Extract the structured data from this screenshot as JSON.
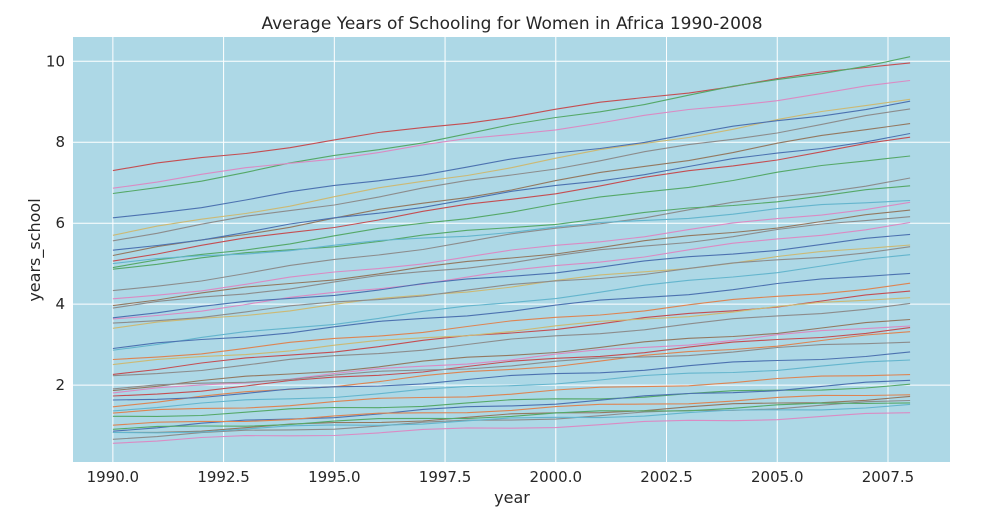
{
  "chart_data": {
    "type": "line",
    "title": "Average Years of Schooling for Women in Africa 1990-2008",
    "xlabel": "year",
    "ylabel": "years_school",
    "xlim": [
      1989.1,
      2008.9
    ],
    "ylim": [
      0.1,
      10.6
    ],
    "x_ticks": [
      "1990.0",
      "1992.5",
      "1995.0",
      "1997.5",
      "2000.0",
      "2002.5",
      "2005.0",
      "2007.5"
    ],
    "y_ticks": [
      "2",
      "4",
      "6",
      "8",
      "10"
    ],
    "x_tick_values": [
      1990,
      1992.5,
      1995,
      1997.5,
      2000,
      2002.5,
      2005,
      2007.5
    ],
    "y_tick_values": [
      2,
      4,
      6,
      8,
      10
    ],
    "grid": true,
    "background": "#add8e6",
    "x": [
      1990,
      1991,
      1992,
      1993,
      1994,
      1995,
      1996,
      1997,
      1998,
      1999,
      2000,
      2001,
      2002,
      2003,
      2004,
      2005,
      2006,
      2007,
      2008
    ],
    "series": [
      {
        "color": "#c44e52",
        "start": 7.3,
        "end": 10.0
      },
      {
        "color": "#55a868",
        "start": 6.7,
        "end": 10.1
      },
      {
        "color": "#da8bc3",
        "start": 6.9,
        "end": 9.5
      },
      {
        "color": "#ccb974",
        "start": 5.7,
        "end": 9.1
      },
      {
        "color": "#4c72b0",
        "start": 6.1,
        "end": 9.0
      },
      {
        "color": "#8c8c8c",
        "start": 5.6,
        "end": 8.8
      },
      {
        "color": "#937860",
        "start": 5.2,
        "end": 8.5
      },
      {
        "color": "#4c72b0",
        "start": 5.3,
        "end": 8.2
      },
      {
        "color": "#c44e52",
        "start": 5.1,
        "end": 8.1
      },
      {
        "color": "#55a868",
        "start": 4.9,
        "end": 7.7
      },
      {
        "color": "#8c8c8c",
        "start": 4.3,
        "end": 7.1
      },
      {
        "color": "#55a868",
        "start": 4.9,
        "end": 6.9
      },
      {
        "color": "#64b5cd",
        "start": 5.0,
        "end": 6.6
      },
      {
        "color": "#da8bc3",
        "start": 4.1,
        "end": 6.5
      },
      {
        "color": "#937860",
        "start": 4.0,
        "end": 6.3
      },
      {
        "color": "#8c8c8c",
        "start": 3.9,
        "end": 6.2
      },
      {
        "color": "#da8bc3",
        "start": 3.6,
        "end": 6.0
      },
      {
        "color": "#4c72b0",
        "start": 3.7,
        "end": 5.7
      },
      {
        "color": "#ccb974",
        "start": 3.4,
        "end": 5.5
      },
      {
        "color": "#8c8c8c",
        "start": 3.5,
        "end": 5.4
      },
      {
        "color": "#64b5cd",
        "start": 2.9,
        "end": 5.2
      },
      {
        "color": "#4c72b0",
        "start": 2.9,
        "end": 4.8
      },
      {
        "color": "#dd8452",
        "start": 2.6,
        "end": 4.5
      },
      {
        "color": "#c44e52",
        "start": 2.3,
        "end": 4.3
      },
      {
        "color": "#ccb974",
        "start": 2.5,
        "end": 4.2
      },
      {
        "color": "#8c8c8c",
        "start": 2.2,
        "end": 4.0
      },
      {
        "color": "#937860",
        "start": 1.9,
        "end": 3.6
      },
      {
        "color": "#da8bc3",
        "start": 1.8,
        "end": 3.5
      },
      {
        "color": "#c44e52",
        "start": 1.7,
        "end": 3.4
      },
      {
        "color": "#dd8452",
        "start": 1.5,
        "end": 3.3
      },
      {
        "color": "#8c8c8c",
        "start": 1.9,
        "end": 3.1
      },
      {
        "color": "#4c72b0",
        "start": 1.6,
        "end": 2.8
      },
      {
        "color": "#64b5cd",
        "start": 1.4,
        "end": 2.6
      },
      {
        "color": "#dd8452",
        "start": 1.3,
        "end": 2.3
      },
      {
        "color": "#55a868",
        "start": 1.2,
        "end": 2.0
      },
      {
        "color": "#4c72b0",
        "start": 0.9,
        "end": 2.1
      },
      {
        "color": "#dd8452",
        "start": 1.0,
        "end": 1.8
      },
      {
        "color": "#937860",
        "start": 0.8,
        "end": 1.7
      },
      {
        "color": "#8c8c8c",
        "start": 0.7,
        "end": 1.6
      },
      {
        "color": "#55a868",
        "start": 0.9,
        "end": 1.6
      },
      {
        "color": "#64b5cd",
        "start": 0.8,
        "end": 1.5
      },
      {
        "color": "#da8bc3",
        "start": 0.6,
        "end": 1.3
      }
    ]
  }
}
